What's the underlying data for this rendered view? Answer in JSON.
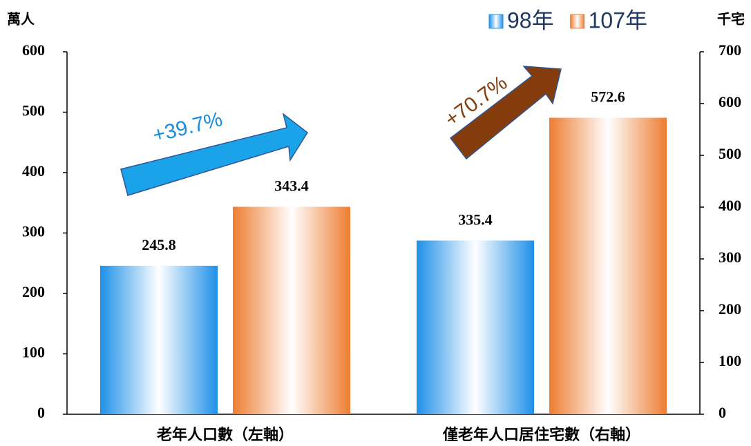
{
  "chart_data": {
    "type": "bar",
    "categories": [
      "老年人口數（左軸）",
      "僅老年人口居住宅數（右軸）"
    ],
    "category_axes": [
      "y",
      "y2"
    ],
    "series": [
      {
        "name": "98年",
        "color": "#1e90e8",
        "values": [
          245.8,
          335.4
        ]
      },
      {
        "name": "107年",
        "color": "#ed7d31",
        "values": [
          343.4,
          572.6
        ]
      }
    ],
    "ylabel": "萬人",
    "y2label": "千宅",
    "ylim": [
      0,
      600
    ],
    "yticks": [
      0,
      100,
      200,
      300,
      400,
      500,
      600
    ],
    "y2lim": [
      0,
      700
    ],
    "y2ticks": [
      0,
      100,
      200,
      300,
      400,
      500,
      600,
      700
    ],
    "annotations": [
      "+39.7%",
      "+70.7%"
    ],
    "legend": "top-right"
  }
}
